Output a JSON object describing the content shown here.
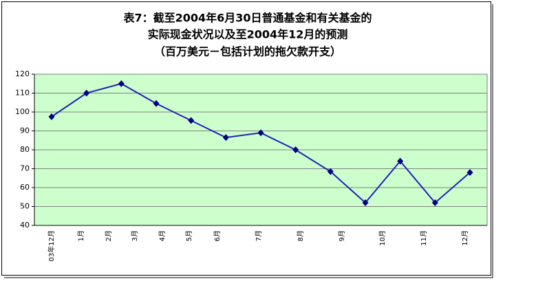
{
  "chart_data": {
    "type": "line",
    "title": [
      "表7：截至2004年6月30日普通基金和有关基金的",
      "实际现金状况以及至2004年12月的预测",
      "（百万美元－包括计划的拖欠款开支）"
    ],
    "categories": [
      "03年12月",
      "1月",
      "2月",
      "3月",
      "4月",
      "5月",
      "6月",
      "7月",
      "8月",
      "9月",
      "10月",
      "11月",
      "12月"
    ],
    "series": [
      {
        "color": "#1f1fb4",
        "values": [
          97.5,
          110,
          115,
          104.5,
          95.5,
          86.5,
          89,
          80,
          68.5,
          52,
          74,
          52,
          68
        ]
      }
    ],
    "ylim": [
      40,
      120
    ],
    "yticks": [
      40,
      50,
      60,
      70,
      80,
      90,
      100,
      110,
      120
    ],
    "grid": true,
    "plot_background": "#ccffcc"
  }
}
